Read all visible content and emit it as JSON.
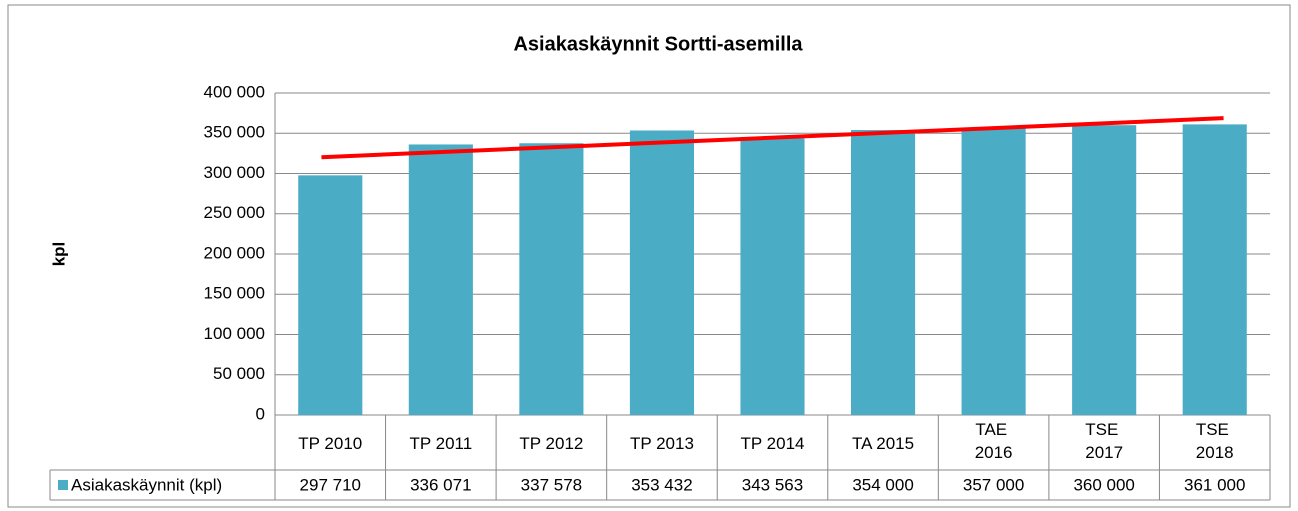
{
  "chart_data": {
    "type": "bar",
    "title": "Asiakaskäynnit Sortti-asemilla",
    "y_label": "kpl",
    "categories": [
      "TP 2010",
      "TP 2011",
      "TP 2012",
      "TP 2013",
      "TP 2014",
      "TA 2015",
      "TAE 2016",
      "TSE 2017",
      "TSE 2018"
    ],
    "series": [
      {
        "name": "Asiakaskäynnit (kpl)",
        "color": "#4bacc6",
        "values": [
          297710,
          336071,
          337578,
          353432,
          343563,
          354000,
          357000,
          360000,
          361000
        ],
        "value_labels": [
          "297 710",
          "336 071",
          "337 578",
          "353 432",
          "343 563",
          "354 000",
          "357 000",
          "360 000",
          "361 000"
        ]
      }
    ],
    "ylim": [
      0,
      400000
    ],
    "yticks": [
      0,
      {
        "value": 50000,
        "label": "50 000"
      },
      {
        "value": 100000,
        "label": "100 000"
      },
      {
        "value": 150000,
        "label": "150 000"
      },
      {
        "value": 200000,
        "label": "200 000"
      },
      {
        "value": 250000,
        "label": "250 000"
      },
      {
        "value": 300000,
        "label": "300 000"
      },
      {
        "value": 350000,
        "label": "350 000"
      },
      {
        "value": 400000,
        "label": "400 000"
      }
    ],
    "grid": true,
    "data_table": true,
    "trendline": {
      "kind": "linear",
      "color": "#ff0000"
    }
  }
}
